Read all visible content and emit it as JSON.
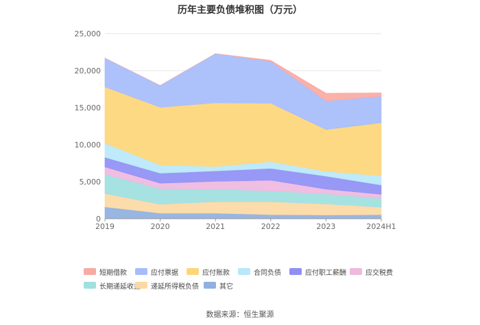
{
  "chart_data": {
    "type": "area",
    "stacked": true,
    "title": "历年主要负债堆积图（万元）",
    "categories": [
      "2019",
      "2020",
      "2021",
      "2022",
      "2023",
      "2024H1"
    ],
    "ylim": [
      0,
      25000
    ],
    "yticks": [
      "0",
      "5,000",
      "10,000",
      "15,000",
      "20,000",
      "25,000"
    ],
    "grid": true,
    "legend_position": "bottom",
    "series": [
      {
        "name": "其它",
        "color": "#8fb0e0",
        "values": [
          1600,
          750,
          750,
          550,
          500,
          550
        ]
      },
      {
        "name": "递延所得税负债",
        "color": "#fcd9a3",
        "values": [
          1800,
          1200,
          1550,
          1750,
          1500,
          1000
        ]
      },
      {
        "name": "长期递延收益",
        "color": "#9fe0e0",
        "values": [
          2600,
          2100,
          1700,
          1450,
          1350,
          1200
        ]
      },
      {
        "name": "应交税费",
        "color": "#eeb8e0",
        "values": [
          1000,
          750,
          1050,
          1450,
          650,
          550
        ]
      },
      {
        "name": "应付职工薪酬",
        "color": "#8f8ff5",
        "values": [
          1300,
          1350,
          1400,
          1600,
          1750,
          1250
        ]
      },
      {
        "name": "合同负债",
        "color": "#b8e8fa",
        "values": [
          1900,
          1100,
          600,
          900,
          650,
          1250
        ]
      },
      {
        "name": "应付账款",
        "color": "#fed67a",
        "values": [
          7600,
          7800,
          8600,
          7900,
          5650,
          7150
        ]
      },
      {
        "name": "应付票据",
        "color": "#a6bcfb",
        "values": [
          3900,
          2950,
          6650,
          5650,
          3850,
          3600
        ]
      },
      {
        "name": "短期借款",
        "color": "#f8aaa3",
        "values": [
          0,
          0,
          0,
          150,
          1050,
          450
        ]
      }
    ]
  },
  "source_label": "数据来源：恒生聚源"
}
